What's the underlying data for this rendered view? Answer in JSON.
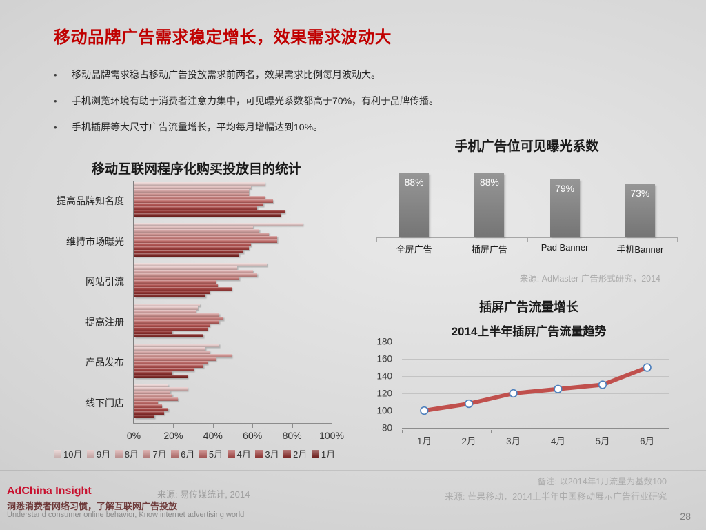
{
  "slide": {
    "title": "移动品牌广告需求稳定增长，效果需求波动大",
    "title_color": "#C00000",
    "bullets": [
      "移动品牌需求稳占移动广告投放需求前两名，效果需求比例每月波动大。",
      "手机浏览环境有助于消费者注意力集中，可见曝光系数都高于70%，有利于品牌传播。",
      "手机插屏等大尺寸广告流量增长，平均每月增幅达到10%。"
    ],
    "page_number": "28"
  },
  "footer": {
    "brand": "AdChina Insight",
    "brand_color": "#C8102E",
    "tagline_zh": "洞悉消费者网络习惯，了解互联网广告投放",
    "tagline_en": "Understand consumer online behavior, Know internet advertising world",
    "source_left": "来源: 易传媒统计, 2014"
  },
  "chart_data": [
    {
      "type": "bar",
      "orientation": "horizontal",
      "title": "移动互联网程序化购买投放目的统计",
      "categories": [
        "提高品牌知名度",
        "维持市场曝光",
        "网站引流",
        "提高注册",
        "产品发布",
        "线下门店"
      ],
      "series": [
        {
          "name": "10月",
          "color": "#E3C8C7",
          "values": [
            66,
            85,
            67,
            33,
            43,
            17
          ]
        },
        {
          "name": "9月",
          "color": "#DDB9B8",
          "values": [
            59,
            60,
            52,
            32,
            36,
            27
          ]
        },
        {
          "name": "8月",
          "color": "#D4A3A2",
          "values": [
            58,
            63,
            60,
            31,
            38,
            18
          ]
        },
        {
          "name": "7月",
          "color": "#CB8E8C",
          "values": [
            58,
            68,
            62,
            43,
            49,
            19
          ]
        },
        {
          "name": "6月",
          "color": "#C27876",
          "values": [
            66,
            72,
            53,
            45,
            41,
            22
          ]
        },
        {
          "name": "5月",
          "color": "#B96260",
          "values": [
            70,
            72,
            41,
            43,
            37,
            12
          ]
        },
        {
          "name": "4月",
          "color": "#B04F4D",
          "values": [
            65,
            59,
            42,
            38,
            35,
            14
          ]
        },
        {
          "name": "3月",
          "color": "#A03C3A",
          "values": [
            62,
            58,
            49,
            37,
            30,
            17
          ]
        },
        {
          "name": "2月",
          "color": "#8E2E2C",
          "values": [
            76,
            55,
            38,
            19,
            19,
            15
          ]
        },
        {
          "name": "1月",
          "color": "#7C2422",
          "values": [
            74,
            53,
            36,
            35,
            27,
            10
          ]
        }
      ],
      "xticks": [
        "0%",
        "20%",
        "40%",
        "60%",
        "80%",
        "100%"
      ],
      "xlim": [
        0,
        100
      ],
      "legend_position": "bottom"
    },
    {
      "type": "bar",
      "orientation": "vertical",
      "title": "手机广告位可见曝光系数",
      "categories": [
        "全屏广告",
        "插屏广告",
        "Pad Banner",
        "手机Banner"
      ],
      "values": [
        88,
        88,
        79,
        73
      ],
      "labels": [
        "88%",
        "88%",
        "79%",
        "73%"
      ],
      "bar_color": "#7F7F7F",
      "label_color": "#FFFFFF",
      "source": "来源: AdMaster 广告形式研究，2014"
    },
    {
      "type": "line",
      "title": "插屏广告流量增长",
      "subtitle": "2014上半年插屏广告流量趋势",
      "x": [
        "1月",
        "2月",
        "3月",
        "4月",
        "5月",
        "6月"
      ],
      "values": [
        100,
        108,
        120,
        125,
        130,
        150
      ],
      "ylim": [
        80,
        180
      ],
      "yticks": [
        180,
        160,
        140,
        120,
        100,
        80
      ],
      "grid": true,
      "line_color": "#C0504D",
      "marker_fill": "#FFFFFF",
      "marker_border": "#4F81BD",
      "note": "备注: 以2014年1月流量为基数100",
      "source": "来源: 芒果移动，2014上半年中国移动展示广告行业研究"
    }
  ]
}
